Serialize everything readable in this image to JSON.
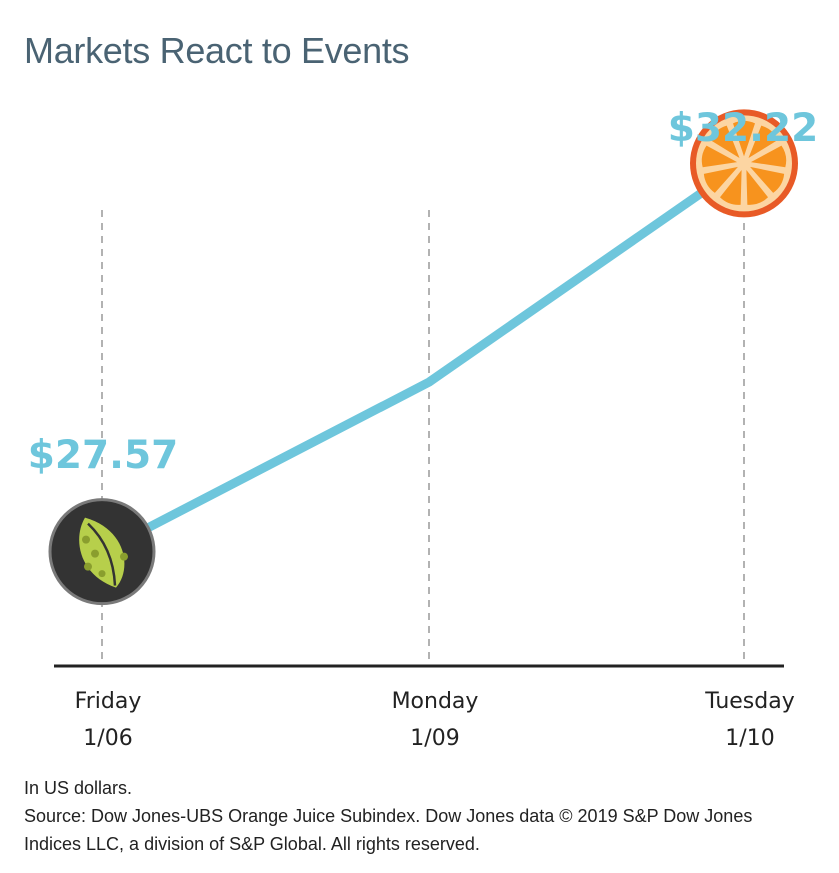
{
  "title": "Markets React to Events",
  "chart_data": {
    "type": "line",
    "title": "Markets React to Events",
    "x": [
      "Friday 1/06",
      "Monday 1/09",
      "Tuesday 1/10"
    ],
    "x_days": [
      "Friday",
      "Monday",
      "Tuesday"
    ],
    "x_dates": [
      "1/06",
      "1/09",
      "1/10"
    ],
    "values": [
      27.57,
      29.6,
      32.22
    ],
    "point_labels": [
      "$27.57",
      "",
      "$32.22"
    ],
    "ylim": [
      26.2,
      32.5
    ],
    "grid": "vertical dashed",
    "line_color": "#6ec6dc",
    "label_color": "#6ec6dc",
    "markers": [
      "leaf-icon",
      "none",
      "orange-slice-icon"
    ]
  },
  "notes": {
    "units": "In US dollars.",
    "source_line1": "Source: Dow Jones-UBS Orange Juice Subindex. Dow Jones data © 2019 S&P Dow Jones",
    "source_line2": "Indices LLC, a division of S&P Global. All rights reserved."
  }
}
